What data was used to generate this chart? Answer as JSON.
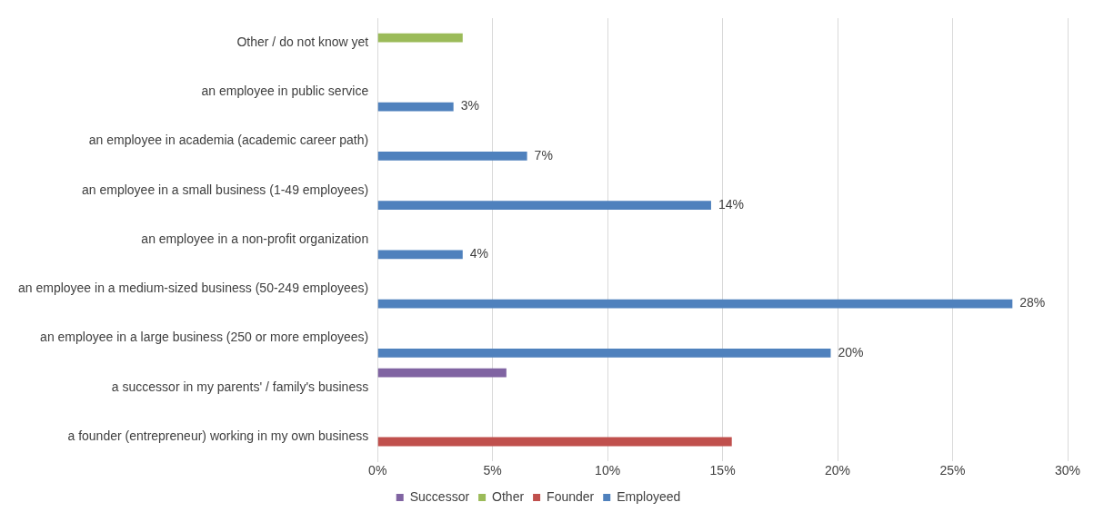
{
  "chart_data": {
    "type": "bar",
    "orientation": "horizontal",
    "categories": [
      "Other / do not know yet",
      "an employee in public service",
      "an employee in academia (academic career path)",
      "an employee in a small business (1-49 employees)",
      "an employee in a non-profit organization",
      "an employee in a medium-sized business (50-249 employees)",
      "an employee in a large business (250 or more employees)",
      "a successor in my parents' / family's business",
      "a founder (entrepreneur) working in my own business"
    ],
    "series": [
      {
        "name": "Successor",
        "color": "#8064a2",
        "values": [
          null,
          null,
          null,
          null,
          null,
          null,
          null,
          5.6,
          null
        ]
      },
      {
        "name": "Other",
        "color": "#9bbb59",
        "values": [
          3.7,
          null,
          null,
          null,
          null,
          null,
          null,
          null,
          null
        ]
      },
      {
        "name": "Founder",
        "color": "#c0504d",
        "values": [
          null,
          null,
          null,
          null,
          null,
          null,
          null,
          null,
          15.4
        ]
      },
      {
        "name": "Employeed",
        "color": "#4f81bd",
        "values": [
          null,
          3.3,
          6.5,
          14.5,
          3.7,
          27.6,
          19.7,
          null,
          null
        ],
        "value_labels": [
          null,
          "3%",
          "7%",
          "14%",
          "4%",
          "28%",
          "20%",
          null,
          null
        ]
      }
    ],
    "xlim": [
      0,
      30
    ],
    "xticks": [
      {
        "value": 0,
        "label": "0%"
      },
      {
        "value": 5,
        "label": "5%"
      },
      {
        "value": 10,
        "label": "10%"
      },
      {
        "value": 15,
        "label": "15%"
      },
      {
        "value": 20,
        "label": "20%"
      },
      {
        "value": 25,
        "label": "25%"
      },
      {
        "value": 30,
        "label": "30%"
      }
    ],
    "grid": "x",
    "legend": "bottom"
  }
}
